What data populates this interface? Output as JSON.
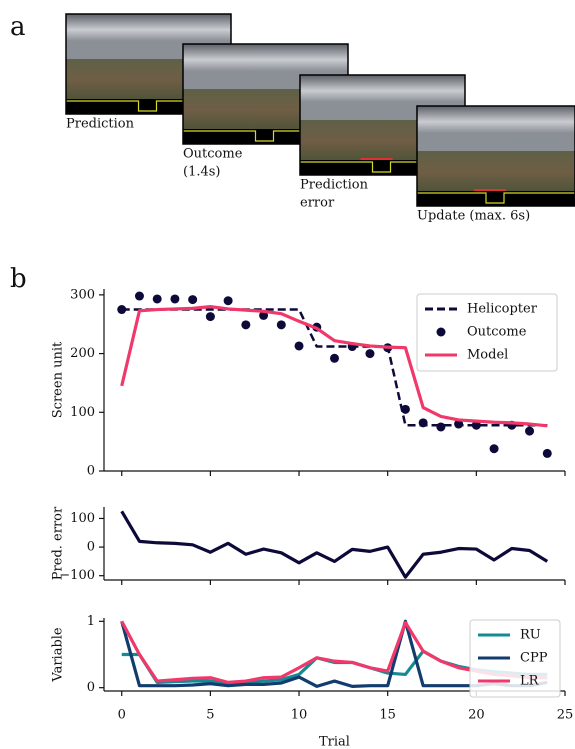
{
  "panel_a": {
    "label": "a",
    "frames": [
      {
        "caption": [
          "Prediction"
        ]
      },
      {
        "caption": [
          "Outcome",
          "(1.4s)"
        ]
      },
      {
        "caption": [
          "Prediction",
          "error"
        ]
      },
      {
        "caption": [
          "Update (max. 6s)"
        ]
      }
    ]
  },
  "panel_b_label": "b",
  "chart_data": [
    {
      "type": "line",
      "ylabel": "Screen unit",
      "x": [
        0,
        1,
        2,
        3,
        4,
        5,
        6,
        7,
        8,
        9,
        10,
        11,
        12,
        13,
        14,
        15,
        16,
        17,
        18,
        19,
        20,
        21,
        22,
        23,
        24
      ],
      "xlim": [
        -1,
        25
      ],
      "xticks": [
        0,
        5,
        10,
        15,
        20,
        25
      ],
      "ylim": [
        0,
        310
      ],
      "yticks": [
        0,
        100,
        200,
        300
      ],
      "legend": "upper right",
      "series": [
        {
          "name": "Helicopter",
          "color": "#0d0a3a",
          "linestyle": "dashed",
          "values": [
            275,
            275,
            275,
            275,
            275,
            275,
            275,
            275,
            275,
            275,
            275,
            212,
            212,
            212,
            212,
            212,
            78,
            78,
            78,
            78,
            78,
            78,
            78,
            78,
            78
          ]
        },
        {
          "name": "Outcome",
          "color": "#0d0a3a",
          "marker": "dot",
          "values": [
            275,
            298,
            293,
            293,
            292,
            263,
            290,
            249,
            265,
            249,
            213,
            245,
            192,
            212,
            200,
            210,
            105,
            82,
            75,
            80,
            78,
            38,
            78,
            68,
            30
          ]
        },
        {
          "name": "Model",
          "color": "#f0386b",
          "linestyle": "solid",
          "values": [
            145,
            273,
            275,
            276,
            277,
            280,
            276,
            274,
            272,
            268,
            255,
            243,
            222,
            217,
            213,
            211,
            210,
            108,
            93,
            87,
            85,
            83,
            82,
            80,
            77
          ]
        }
      ]
    },
    {
      "type": "line",
      "ylabel": "Pred. error",
      "x": [
        0,
        1,
        2,
        3,
        4,
        5,
        6,
        7,
        8,
        9,
        10,
        11,
        12,
        13,
        14,
        15,
        16,
        17,
        18,
        19,
        20,
        21,
        22,
        23,
        24
      ],
      "xlim": [
        -1,
        25
      ],
      "xticks": [
        0,
        5,
        10,
        15,
        20,
        25
      ],
      "ylim": [
        -115,
        140
      ],
      "yticks": [
        {
          "value": -100,
          "label": "−100"
        },
        0,
        100
      ],
      "series": [
        {
          "color": "#0d0a3a",
          "linestyle": "solid",
          "values": [
            125,
            20,
            15,
            13,
            8,
            -18,
            13,
            -25,
            -7,
            -20,
            -55,
            -20,
            -50,
            -8,
            -15,
            0,
            -105,
            -25,
            -18,
            -5,
            -7,
            -45,
            -5,
            -12,
            -50
          ]
        }
      ]
    },
    {
      "type": "line",
      "ylabel": "Variable",
      "xlabel": "Trial",
      "x": [
        0,
        1,
        2,
        3,
        4,
        5,
        6,
        7,
        8,
        9,
        10,
        11,
        12,
        13,
        14,
        15,
        16,
        17,
        18,
        19,
        20,
        21,
        22,
        23,
        24
      ],
      "xlim": [
        -1,
        25
      ],
      "xticks": [
        0,
        5,
        10,
        15,
        20,
        25
      ],
      "xticklabels": true,
      "ylim": [
        -0.05,
        1.05
      ],
      "yticks": [
        0,
        1
      ],
      "legend": "lower right",
      "series": [
        {
          "name": "RU",
          "color": "#138a94",
          "linestyle": "solid",
          "values": [
            0.5,
            0.5,
            0.08,
            0.09,
            0.1,
            0.1,
            0.06,
            0.08,
            0.1,
            0.12,
            0.2,
            0.45,
            0.38,
            0.38,
            0.3,
            0.22,
            0.2,
            0.55,
            0.4,
            0.32,
            0.27,
            0.24,
            0.22,
            0.2,
            0.2
          ]
        },
        {
          "name": "CPP",
          "color": "#123c6e",
          "linestyle": "solid",
          "values": [
            1,
            0.03,
            0.03,
            0.03,
            0.04,
            0.06,
            0.03,
            0.05,
            0.05,
            0.07,
            0.16,
            0.02,
            0.1,
            0.02,
            0.03,
            0.03,
            1,
            0.03,
            0.03,
            0.03,
            0.03,
            0.06,
            0.03,
            0.03,
            0.08
          ]
        },
        {
          "name": "LR",
          "color": "#f0386b",
          "linestyle": "solid",
          "values": [
            1,
            0.5,
            0.1,
            0.12,
            0.14,
            0.15,
            0.08,
            0.1,
            0.15,
            0.16,
            0.3,
            0.45,
            0.4,
            0.38,
            0.3,
            0.25,
            0.98,
            0.55,
            0.4,
            0.3,
            0.25,
            0.2,
            0.18,
            0.15,
            0.15
          ]
        }
      ]
    }
  ]
}
